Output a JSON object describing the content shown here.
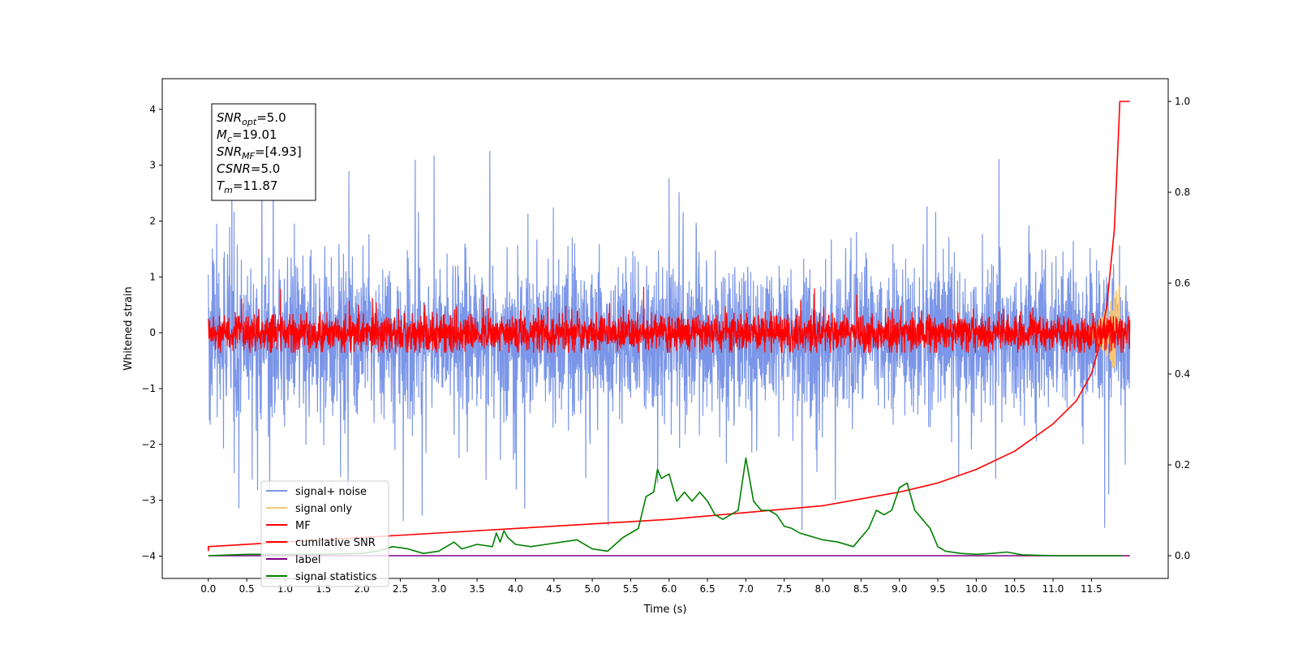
{
  "chart_data": {
    "type": "line",
    "title": "",
    "xlabel": "Time (s)",
    "ylabel": "Whitened strain",
    "y2label": "",
    "xlim": [
      -0.6,
      12.5
    ],
    "ylim": [
      -4.4,
      4.55
    ],
    "y2lim": [
      -0.05,
      1.05
    ],
    "x_ticks": [
      "0.0",
      "0.5",
      "1.0",
      "1.5",
      "2.0",
      "2.5",
      "3.0",
      "3.5",
      "4.0",
      "4.5",
      "5.0",
      "5.5",
      "6.0",
      "6.5",
      "7.0",
      "7.5",
      "8.0",
      "8.5",
      "9.0",
      "9.5",
      "10.0",
      "10.5",
      "11.0",
      "11.5"
    ],
    "y_ticks": [
      "4",
      "3",
      "2",
      "1",
      "0",
      "−1",
      "−2",
      "−3",
      "−4"
    ],
    "y2_ticks": [
      "1.0",
      "0.8",
      "0.6",
      "0.4",
      "0.2",
      "0.0"
    ],
    "grid": false,
    "legend_position": "bottom-left",
    "annotation": [
      {
        "base": "SNR",
        "sub": "opt",
        "value": "=5.0"
      },
      {
        "base": "M",
        "sub": "c",
        "value": "=19.01"
      },
      {
        "base": "SNR",
        "sub": "MF",
        "value": "=[4.93]"
      },
      {
        "base": "CSNR",
        "sub": "",
        "value": "=5.0"
      },
      {
        "base": "T",
        "sub": "m",
        "value": "=11.87"
      }
    ],
    "series": [
      {
        "name": "signal+ noise",
        "color": "#7b96e8",
        "axis": "left",
        "kind": "noise",
        "t_end": 12.0,
        "center": -0.1,
        "envelope": 1.25,
        "max": 4.15,
        "min": -4.0
      },
      {
        "name": "signal only",
        "color": "#f5c77a",
        "axis": "left",
        "kind": "chirp",
        "t_start": 11.3,
        "t_end": 11.87,
        "amplitude_max": 0.9
      },
      {
        "name": "MF",
        "color": "#ff0000",
        "axis": "left",
        "kind": "noise",
        "t_end": 12.0,
        "center": 0.0,
        "envelope": 0.3,
        "max": 1.0,
        "min": -0.35
      },
      {
        "name": "cumilative SNR",
        "color": "#ff0000",
        "axis": "right",
        "x": [
          0.0,
          0.0,
          1.0,
          2.0,
          3.0,
          4.0,
          5.0,
          6.0,
          7.0,
          8.0,
          9.0,
          9.5,
          10.0,
          10.5,
          11.0,
          11.3,
          11.5,
          11.6,
          11.7,
          11.8,
          11.87,
          11.9,
          12.0
        ],
        "y": [
          0.01,
          0.02,
          0.03,
          0.04,
          0.05,
          0.06,
          0.07,
          0.08,
          0.095,
          0.11,
          0.14,
          0.16,
          0.19,
          0.23,
          0.29,
          0.34,
          0.4,
          0.46,
          0.55,
          0.72,
          1.0,
          1.0,
          1.0
        ]
      },
      {
        "name": "label",
        "color": "#800080",
        "axis": "right",
        "x": [
          0.0,
          12.0
        ],
        "y": [
          0.0,
          0.0
        ]
      },
      {
        "name": "signal statistics",
        "color": "#008000",
        "axis": "right",
        "x": [
          0.0,
          0.5,
          1.0,
          1.5,
          2.0,
          2.2,
          2.4,
          2.6,
          2.8,
          3.0,
          3.2,
          3.3,
          3.5,
          3.7,
          3.75,
          3.8,
          3.85,
          3.9,
          4.0,
          4.2,
          4.4,
          4.6,
          4.8,
          5.0,
          5.2,
          5.4,
          5.5,
          5.6,
          5.7,
          5.8,
          5.85,
          5.9,
          6.0,
          6.1,
          6.2,
          6.3,
          6.4,
          6.5,
          6.6,
          6.7,
          6.8,
          6.9,
          7.0,
          7.1,
          7.2,
          7.3,
          7.4,
          7.5,
          7.6,
          7.7,
          7.8,
          7.9,
          8.0,
          8.2,
          8.4,
          8.6,
          8.7,
          8.8,
          8.9,
          9.0,
          9.1,
          9.2,
          9.3,
          9.4,
          9.5,
          9.6,
          9.8,
          10.0,
          10.2,
          10.4,
          10.6,
          11.0,
          11.9
        ],
        "y": [
          0.0,
          0.003,
          0.003,
          0.003,
          0.005,
          0.01,
          0.02,
          0.015,
          0.005,
          0.01,
          0.03,
          0.015,
          0.025,
          0.02,
          0.05,
          0.03,
          0.055,
          0.04,
          0.025,
          0.02,
          0.025,
          0.03,
          0.035,
          0.015,
          0.01,
          0.04,
          0.05,
          0.06,
          0.13,
          0.14,
          0.19,
          0.17,
          0.18,
          0.12,
          0.14,
          0.12,
          0.14,
          0.12,
          0.09,
          0.08,
          0.09,
          0.1,
          0.215,
          0.12,
          0.1,
          0.1,
          0.09,
          0.065,
          0.06,
          0.05,
          0.045,
          0.04,
          0.035,
          0.03,
          0.02,
          0.06,
          0.1,
          0.09,
          0.1,
          0.15,
          0.16,
          0.1,
          0.08,
          0.06,
          0.02,
          0.01,
          0.005,
          0.003,
          0.005,
          0.008,
          0.002,
          0.0,
          0.0
        ]
      }
    ]
  }
}
